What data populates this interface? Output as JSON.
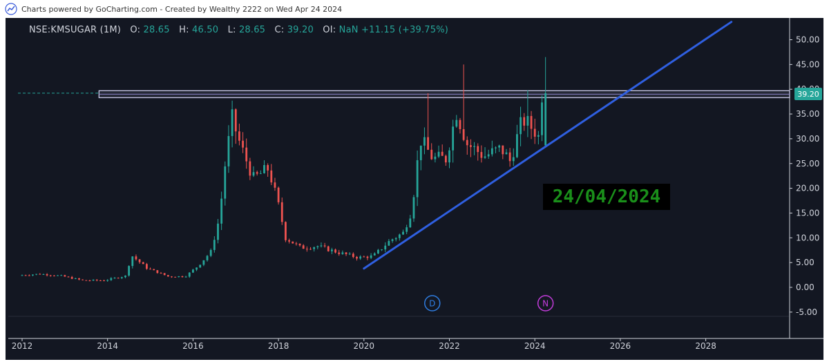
{
  "header": {
    "credit": "Charts powered by GoCharting.com - Created by Wealthy 2222 on Wed Apr 24 2024"
  },
  "legend": {
    "symbol": "NSE:KMSUGAR (1M)",
    "open_label": "O:",
    "open": "28.65",
    "high_label": "H:",
    "high": "46.50",
    "low_label": "L:",
    "low": "28.65",
    "close_label": "C:",
    "close": "39.20",
    "oi_label": "OI:",
    "oi": "NaN",
    "change": "+11.15",
    "change_pct": "(+39.75%)"
  },
  "annotation_date": "24/04/2024",
  "price_tag": "39.20",
  "colors": {
    "background": "#131722",
    "up": "#26a69a",
    "down": "#ef5350",
    "trendline": "#2f5fe0",
    "resistance_zone": "#c8c8e6",
    "date_text": "#1a8f1a"
  },
  "chart_data": {
    "type": "candlestick",
    "title": "NSE:KMSUGAR (1M)",
    "x_ticks": [
      "2012",
      "2014",
      "2016",
      "2018",
      "2020",
      "2022",
      "2024",
      "2026",
      "2028"
    ],
    "y_ticks": [
      "-5.00",
      "0.00",
      "5.00",
      "10.00",
      "15.00",
      "20.00",
      "25.00",
      "30.00",
      "35.00",
      "40.00",
      "45.00",
      "50.00"
    ],
    "ylim": [
      -7,
      53
    ],
    "xlim": [
      2012.0,
      2030.0
    ],
    "grid": false,
    "last_price": 39.2,
    "resistance_zone": {
      "low": 38.3,
      "high": 39.7,
      "from": 2013.8,
      "to": 2030.0
    },
    "trendline": {
      "from": [
        2020.0,
        3.8
      ],
      "to": [
        2028.6,
        53.6
      ]
    },
    "event_markers": [
      {
        "label": "D",
        "x": 2021.6,
        "color": "#2f7de1"
      },
      {
        "label": "N",
        "x": 2024.25,
        "color": "#c43cdc"
      }
    ],
    "anchors": [
      [
        2012.0,
        2.4
      ],
      [
        2012.5,
        2.7
      ],
      [
        2013.0,
        2.3
      ],
      [
        2013.5,
        1.4
      ],
      [
        2014.0,
        1.4
      ],
      [
        2014.5,
        2.3
      ],
      [
        2014.65,
        6.4
      ],
      [
        2015.0,
        3.9
      ],
      [
        2015.5,
        2.2
      ],
      [
        2015.9,
        2.2
      ],
      [
        2016.2,
        4.3
      ],
      [
        2016.5,
        7.2
      ],
      [
        2016.7,
        14.0
      ],
      [
        2016.85,
        26.0
      ],
      [
        2017.0,
        34.0
      ],
      [
        2017.2,
        28.5
      ],
      [
        2017.5,
        22.0
      ],
      [
        2017.85,
        24.0
      ],
      [
        2018.1,
        16.0
      ],
      [
        2018.25,
        10.0
      ],
      [
        2018.6,
        8.0
      ],
      [
        2019.0,
        8.3
      ],
      [
        2019.5,
        7.0
      ],
      [
        2019.95,
        6.0
      ],
      [
        2020.3,
        6.3
      ],
      [
        2020.7,
        9.5
      ],
      [
        2021.0,
        11.0
      ],
      [
        2021.2,
        15.5
      ],
      [
        2021.4,
        30.0
      ],
      [
        2021.7,
        26.0
      ],
      [
        2022.0,
        26.0
      ],
      [
        2022.25,
        35.5
      ],
      [
        2022.5,
        29.0
      ],
      [
        2022.9,
        26.5
      ],
      [
        2023.3,
        28.0
      ],
      [
        2023.5,
        25.5
      ],
      [
        2023.8,
        34.0
      ],
      [
        2024.1,
        31.5
      ],
      [
        2024.15,
        28.65
      ],
      [
        2024.25,
        39.2
      ]
    ]
  }
}
